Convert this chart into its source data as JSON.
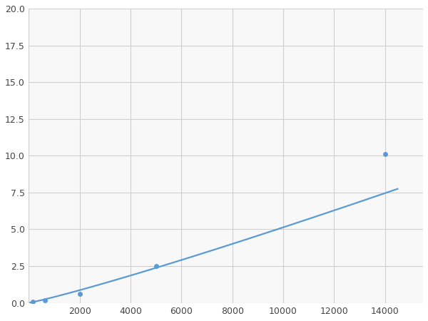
{
  "x_points": [
    156,
    625,
    2000,
    5000,
    14000
  ],
  "y_points": [
    0.08,
    0.15,
    0.6,
    2.5,
    10.1
  ],
  "line_color": "#5b9bd5",
  "marker_color": "#5b9bd5",
  "marker_size": 5,
  "xlim": [
    0,
    15500
  ],
  "ylim": [
    0,
    20
  ],
  "xticks": [
    0,
    2000,
    4000,
    6000,
    8000,
    10000,
    12000,
    14000
  ],
  "yticks": [
    0.0,
    2.5,
    5.0,
    7.5,
    10.0,
    12.5,
    15.0,
    17.5,
    20.0
  ],
  "grid_color": "#d0d0d0",
  "background_color": "#f8f8f8",
  "fig_background": "#ffffff",
  "linewidth": 1.6
}
